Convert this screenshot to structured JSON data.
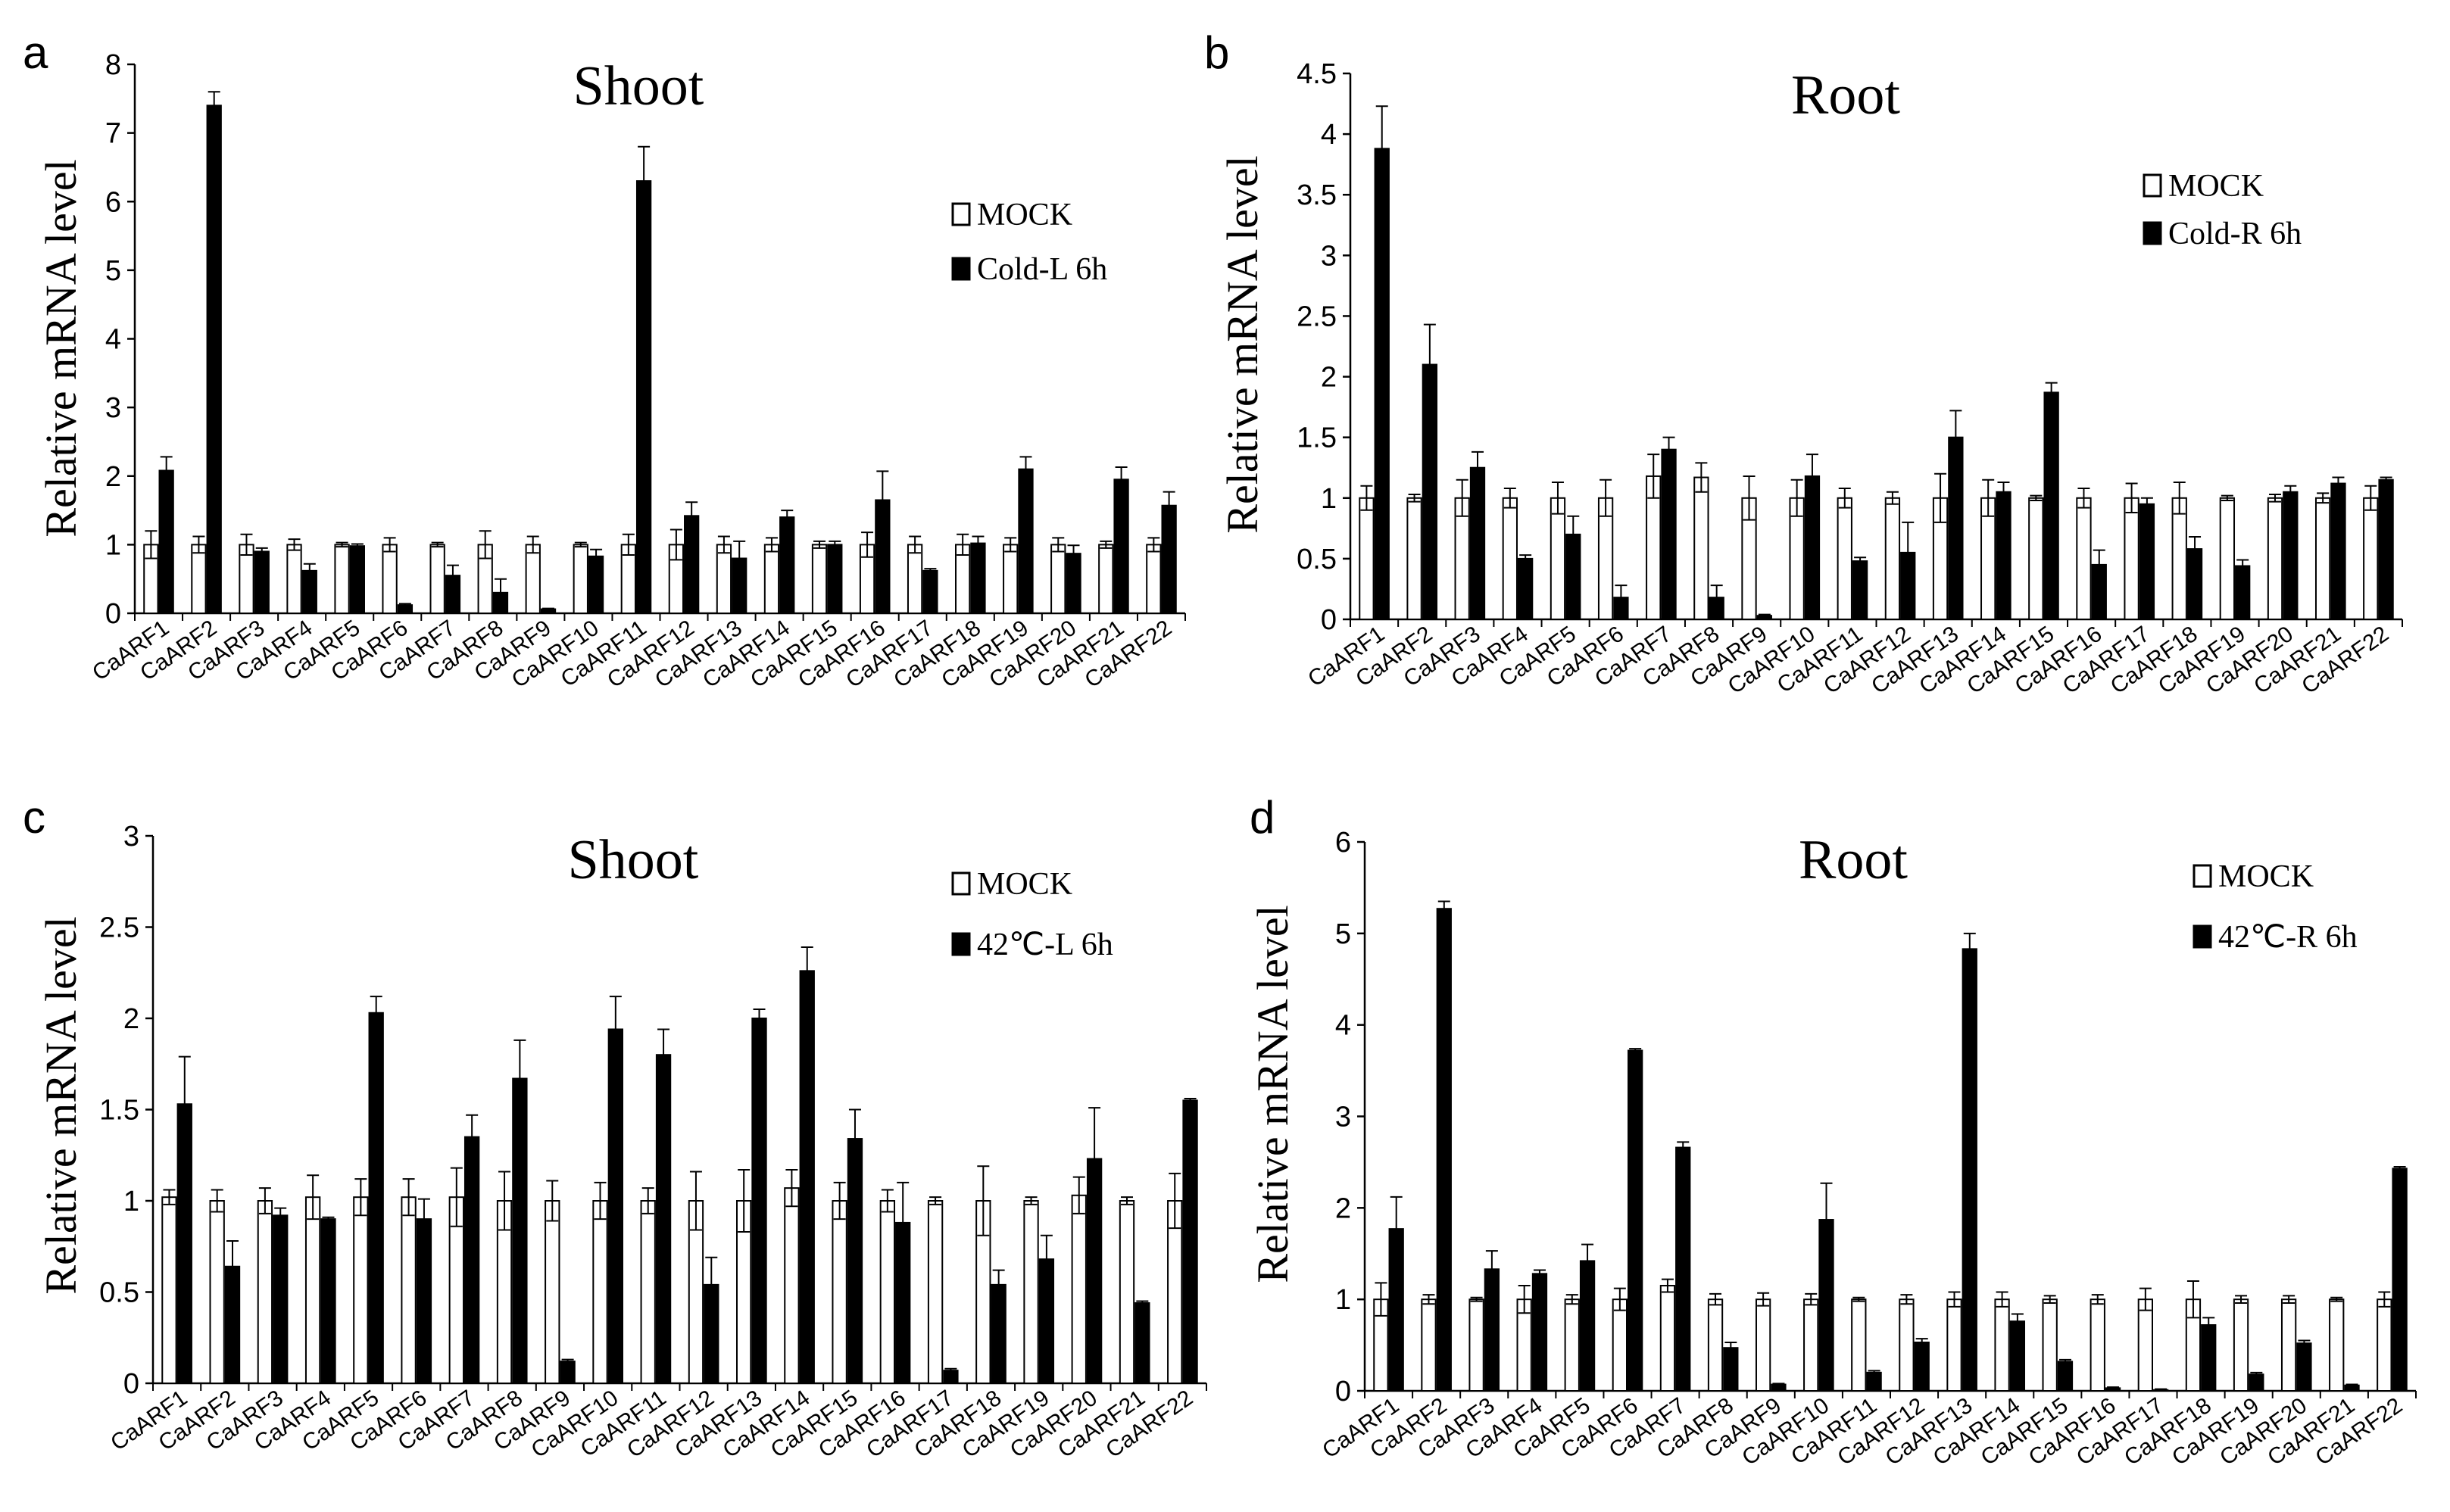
{
  "colors": {
    "mock": "#ffffff",
    "treated": "#000000",
    "axis": "#000000",
    "errorbar": "#000000"
  },
  "chart_data": [
    {
      "panel": "a",
      "type": "bar",
      "title": "Shoot",
      "xlabel": "",
      "ylabel": "Relative mRNA level",
      "ylim": [
        0,
        8
      ],
      "yticks": [
        "0",
        "1",
        "2",
        "3",
        "4",
        "5",
        "6",
        "7",
        "8"
      ],
      "legend_position": "top-right",
      "categories": [
        "CaARF1",
        "CaARF2",
        "CaARF3",
        "CaARF4",
        "CaARF5",
        "CaARF6",
        "CaARF7",
        "CaARF8",
        "CaARF9",
        "CaARF10",
        "CaARF11",
        "CaARF12",
        "CaARF13",
        "CaARF14",
        "CaARF15",
        "CaARF16",
        "CaARF17",
        "CaARF18",
        "CaARF19",
        "CaARF20",
        "CaARF21",
        "CaARF22"
      ],
      "series": [
        {
          "name": "MOCK",
          "values": [
            1.0,
            1.0,
            1.0,
            1.0,
            1.0,
            1.0,
            1.0,
            1.0,
            1.0,
            1.0,
            1.0,
            1.0,
            1.0,
            1.0,
            1.0,
            1.0,
            1.0,
            1.0,
            1.0,
            1.0,
            1.0,
            1.0
          ],
          "errors": [
            0.2,
            0.12,
            0.15,
            0.08,
            0.03,
            0.1,
            0.03,
            0.2,
            0.12,
            0.03,
            0.15,
            0.22,
            0.12,
            0.1,
            0.05,
            0.18,
            0.12,
            0.15,
            0.1,
            0.1,
            0.05,
            0.1
          ]
        },
        {
          "name": "Cold-L 6h",
          "values": [
            2.08,
            7.4,
            0.9,
            0.62,
            0.98,
            0.12,
            0.55,
            0.3,
            0.06,
            0.83,
            6.3,
            1.42,
            0.8,
            1.4,
            1.0,
            1.65,
            0.62,
            1.02,
            2.1,
            0.87,
            1.95,
            1.57
          ],
          "errors": [
            0.2,
            0.2,
            0.05,
            0.1,
            0.03,
            0.02,
            0.15,
            0.2,
            0.01,
            0.1,
            0.5,
            0.2,
            0.25,
            0.1,
            0.05,
            0.42,
            0.03,
            0.1,
            0.18,
            0.12,
            0.18,
            0.2
          ]
        }
      ]
    },
    {
      "panel": "b",
      "type": "bar",
      "title": "Root",
      "xlabel": "",
      "ylabel": "Relative mRNA level",
      "ylim": [
        0,
        4.5
      ],
      "yticks": [
        "0",
        "0.5",
        "1",
        "1.5",
        "2",
        "2.5",
        "3",
        "3.5",
        "4",
        "4.5"
      ],
      "legend_position": "top-right",
      "categories": [
        "CaARF1",
        "CaARF2",
        "CaARF3",
        "CaARF4",
        "CaARF5",
        "CaARF6",
        "CaARF7",
        "CaARF8",
        "CaARF9",
        "CaARF10",
        "CaARF11",
        "CaARF12",
        "CaARF13",
        "CaARF14",
        "CaARF15",
        "CaARF16",
        "CaARF17",
        "CaARF18",
        "CaARF19",
        "CaARF20",
        "CaARF21",
        "CaARF22"
      ],
      "series": [
        {
          "name": "MOCK",
          "values": [
            1.0,
            1.0,
            1.0,
            1.0,
            1.0,
            1.0,
            1.18,
            1.17,
            1.0,
            1.0,
            1.0,
            1.0,
            1.0,
            1.0,
            1.0,
            1.0,
            1.0,
            1.0,
            1.0,
            1.0,
            1.0,
            1.0
          ],
          "errors": [
            0.1,
            0.03,
            0.15,
            0.08,
            0.13,
            0.15,
            0.18,
            0.12,
            0.18,
            0.15,
            0.08,
            0.05,
            0.2,
            0.15,
            0.02,
            0.08,
            0.12,
            0.13,
            0.02,
            0.03,
            0.04,
            0.1
          ]
        },
        {
          "name": "Cold-R 6h",
          "values": [
            3.88,
            2.1,
            1.25,
            0.5,
            0.7,
            0.18,
            1.4,
            0.18,
            0.03,
            1.18,
            0.48,
            0.55,
            1.5,
            1.05,
            1.87,
            0.45,
            0.95,
            0.58,
            0.44,
            1.05,
            1.12,
            1.15
          ],
          "errors": [
            0.35,
            0.33,
            0.13,
            0.03,
            0.15,
            0.1,
            0.1,
            0.1,
            0.01,
            0.18,
            0.03,
            0.25,
            0.22,
            0.08,
            0.08,
            0.12,
            0.05,
            0.1,
            0.05,
            0.05,
            0.05,
            0.02
          ]
        }
      ]
    },
    {
      "panel": "c",
      "type": "bar",
      "title": "Shoot",
      "xlabel": "",
      "ylabel": "Relative mRNA level",
      "ylim": [
        0,
        3
      ],
      "yticks": [
        "0",
        "0.5",
        "1",
        "1.5",
        "2",
        "2.5",
        "3"
      ],
      "legend_position": "top-right",
      "categories": [
        "CaARF1",
        "CaARF2",
        "CaARF3",
        "CaARF4",
        "CaARF5",
        "CaARF6",
        "CaARF7",
        "CaARF8",
        "CaARF9",
        "CaARF10",
        "CaARF11",
        "CaARF12",
        "CaARF13",
        "CaARF14",
        "CaARF15",
        "CaARF16",
        "CaARF17",
        "CaARF18",
        "CaARF19",
        "CaARF20",
        "CaARF21",
        "CaARF22"
      ],
      "series": [
        {
          "name": "MOCK",
          "values": [
            1.02,
            1.0,
            1.0,
            1.02,
            1.02,
            1.02,
            1.02,
            1.0,
            1.0,
            1.0,
            1.0,
            1.0,
            1.0,
            1.07,
            1.0,
            1.0,
            1.0,
            1.0,
            1.0,
            1.03,
            1.0,
            1.0
          ],
          "errors": [
            0.04,
            0.06,
            0.07,
            0.12,
            0.1,
            0.1,
            0.16,
            0.16,
            0.11,
            0.1,
            0.07,
            0.16,
            0.17,
            0.1,
            0.1,
            0.06,
            0.02,
            0.19,
            0.02,
            0.1,
            0.02,
            0.15
          ]
        },
        {
          "name": "42℃-L 6h",
          "values": [
            1.53,
            0.64,
            0.92,
            0.9,
            2.03,
            0.9,
            1.35,
            1.67,
            0.12,
            1.94,
            1.8,
            0.54,
            2.0,
            2.26,
            1.34,
            0.88,
            0.07,
            0.54,
            0.68,
            1.23,
            0.44,
            1.55
          ],
          "errors": [
            0.26,
            0.14,
            0.04,
            0.01,
            0.09,
            0.11,
            0.12,
            0.21,
            0.01,
            0.18,
            0.14,
            0.15,
            0.05,
            0.13,
            0.16,
            0.22,
            0.01,
            0.08,
            0.13,
            0.28,
            0.01,
            0.01
          ]
        }
      ]
    },
    {
      "panel": "d",
      "type": "bar",
      "title": "Root",
      "xlabel": "",
      "ylabel": "Relative mRNA level",
      "ylim": [
        0,
        6
      ],
      "yticks": [
        "0",
        "1",
        "2",
        "3",
        "4",
        "5",
        "6"
      ],
      "legend_position": "top-right",
      "categories": [
        "CaARF1",
        "CaARF2",
        "CaARF3",
        "CaARF4",
        "CaARF5",
        "CaARF6",
        "CaARF7",
        "CaARF8",
        "CaARF9",
        "CaARF10",
        "CaARF11",
        "CaARF12",
        "CaARF13",
        "CaARF14",
        "CaARF15",
        "CaARF16",
        "CaARF17",
        "CaARF18",
        "CaARF19",
        "CaARF20",
        "CaARF21",
        "CaARF22"
      ],
      "series": [
        {
          "name": "MOCK",
          "values": [
            1.0,
            1.0,
            1.0,
            1.0,
            1.0,
            1.0,
            1.15,
            1.0,
            1.0,
            1.0,
            1.0,
            1.0,
            1.0,
            1.0,
            1.0,
            1.0,
            1.0,
            1.0,
            1.0,
            1.0,
            1.0,
            1.0
          ],
          "errors": [
            0.18,
            0.05,
            0.02,
            0.15,
            0.05,
            0.12,
            0.07,
            0.06,
            0.07,
            0.06,
            0.02,
            0.05,
            0.08,
            0.08,
            0.04,
            0.05,
            0.12,
            0.2,
            0.04,
            0.04,
            0.02,
            0.08
          ]
        },
        {
          "name": "42℃-R 6h",
          "values": [
            1.77,
            5.27,
            1.33,
            1.28,
            1.42,
            3.72,
            2.66,
            0.47,
            0.07,
            1.87,
            0.2,
            0.53,
            4.83,
            0.76,
            0.32,
            0.03,
            0.01,
            0.72,
            0.18,
            0.52,
            0.06,
            2.43
          ],
          "errors": [
            0.35,
            0.08,
            0.2,
            0.04,
            0.18,
            0.02,
            0.06,
            0.06,
            0.01,
            0.4,
            0.02,
            0.04,
            0.17,
            0.08,
            0.02,
            0.01,
            0.01,
            0.08,
            0.02,
            0.03,
            0.01,
            0.02
          ]
        }
      ]
    }
  ]
}
